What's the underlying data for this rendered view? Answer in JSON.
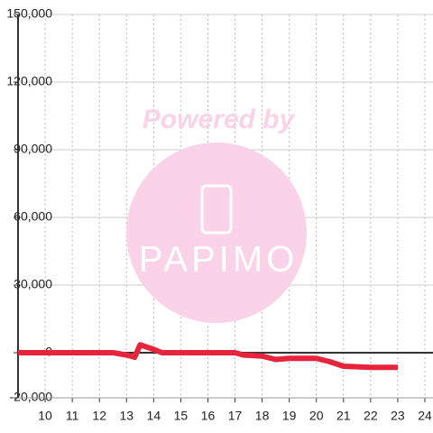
{
  "chart_data": {
    "type": "line",
    "watermark_top": "Powered by",
    "watermark_bottom": "PAPIMO",
    "x": [
      9,
      12.5,
      13,
      13.3,
      13.5,
      14,
      14.3,
      17,
      17.3,
      18,
      18.5,
      19,
      20,
      20.5,
      21,
      22,
      23
    ],
    "series": [
      {
        "color": "#e8243c",
        "values": [
          0,
          0,
          -1000,
          -2000,
          3500,
          1500,
          0,
          0,
          -1000,
          -1500,
          -3000,
          -2500,
          -2500,
          -4000,
          -6000,
          -6500,
          -6500
        ]
      }
    ],
    "xlim": [
      9,
      24.3
    ],
    "xticks": [
      10,
      11,
      12,
      13,
      14,
      15,
      16,
      17,
      18,
      19,
      20,
      21,
      22,
      23,
      24
    ],
    "ylim": [
      -20000,
      150000
    ],
    "yticks": [
      {
        "value": -20000,
        "label": "-20,000"
      },
      0,
      {
        "value": 30000,
        "label": "30,000"
      },
      {
        "value": 60000,
        "label": "60,000"
      },
      {
        "value": 90000,
        "label": "90,000"
      },
      {
        "value": 120000,
        "label": "120,000"
      },
      {
        "value": 150000,
        "label": "150,000"
      }
    ],
    "grid": true
  }
}
